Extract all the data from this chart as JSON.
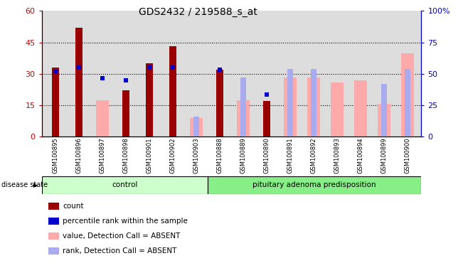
{
  "title": "GDS2432 / 219588_s_at",
  "samples": [
    "GSM100895",
    "GSM100896",
    "GSM100897",
    "GSM100898",
    "GSM100901",
    "GSM100902",
    "GSM100903",
    "GSM100888",
    "GSM100889",
    "GSM100890",
    "GSM100891",
    "GSM100892",
    "GSM100893",
    "GSM100894",
    "GSM100899",
    "GSM100900"
  ],
  "n_control": 7,
  "n_adenoma": 9,
  "count_values": [
    33,
    52,
    0,
    22,
    35,
    43,
    0,
    32,
    0,
    17,
    0,
    0,
    0,
    0,
    0,
    0
  ],
  "percentile_values": [
    31,
    33,
    28,
    27,
    33,
    33,
    0,
    32,
    0,
    20,
    0,
    0,
    0,
    0,
    0,
    0
  ],
  "value_absent": [
    0,
    0,
    29,
    0,
    0,
    0,
    15,
    0,
    29,
    0,
    47,
    47,
    43,
    45,
    26,
    66
  ],
  "rank_absent": [
    0,
    0,
    0,
    0,
    0,
    0,
    16,
    0,
    47,
    0,
    54,
    54,
    0,
    0,
    42,
    54
  ],
  "ylim_left": [
    0,
    60
  ],
  "ylim_right": [
    0,
    100
  ],
  "yticks_left": [
    0,
    15,
    30,
    45,
    60
  ],
  "yticks_right": [
    0,
    25,
    50,
    75,
    100
  ],
  "ytick_labels_left": [
    "0",
    "15",
    "30",
    "45",
    "60"
  ],
  "ytick_labels_right": [
    "0",
    "25",
    "50",
    "75",
    "100%"
  ],
  "count_color": "#990000",
  "percentile_color": "#0000cc",
  "value_absent_color": "#ffaaaa",
  "rank_absent_color": "#aaaaee",
  "bg_color": "#dddddd",
  "label_count": "count",
  "label_percentile": "percentile rank within the sample",
  "label_value_absent": "value, Detection Call = ABSENT",
  "label_rank_absent": "rank, Detection Call = ABSENT",
  "disease_state_label": "disease state",
  "control_label": "control",
  "adenoma_label": "pituitary adenoma predisposition",
  "control_color": "#ccffcc",
  "adenoma_color": "#88ee88"
}
